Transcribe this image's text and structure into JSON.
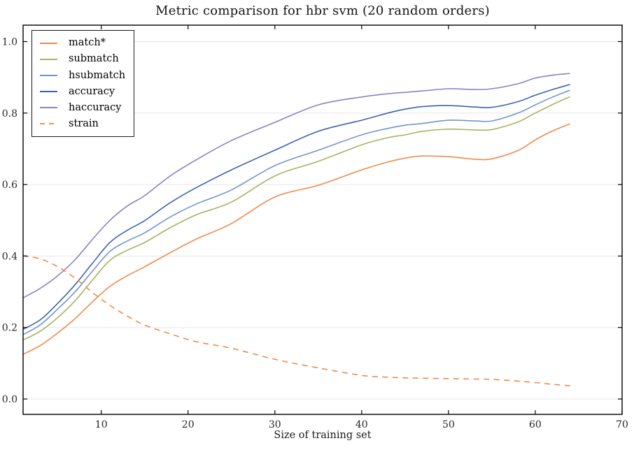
{
  "chart_data": {
    "type": "line",
    "title": "Metric comparison for hbr svm (20 random orders)",
    "xlabel": "Size of training set",
    "ylabel": "",
    "xlim": [
      1,
      70
    ],
    "ylim": [
      -0.043,
      1.046
    ],
    "x_ticks": [
      10,
      20,
      30,
      40,
      50,
      60,
      70
    ],
    "y_ticks": [
      0.0,
      0.2,
      0.4,
      0.6,
      0.8,
      1.0
    ],
    "grid": "horizontal",
    "legend_position": "upper left",
    "x": [
      1,
      3,
      5,
      7,
      9,
      11,
      13,
      15,
      18,
      21,
      25,
      30,
      35,
      40,
      43,
      45,
      47,
      50,
      53,
      55,
      58,
      60,
      62,
      64
    ],
    "series": [
      {
        "name": "match*",
        "color": "#EE8A4B",
        "style": "solid",
        "values": [
          0.125,
          0.15,
          0.185,
          0.225,
          0.272,
          0.315,
          0.345,
          0.37,
          0.41,
          0.448,
          0.491,
          0.565,
          0.598,
          0.641,
          0.663,
          0.674,
          0.68,
          0.678,
          0.671,
          0.672,
          0.695,
          0.725,
          0.75,
          0.77
        ]
      },
      {
        "name": "submatch",
        "color": "#A5B35F",
        "style": "solid",
        "values": [
          0.165,
          0.19,
          0.228,
          0.275,
          0.333,
          0.388,
          0.416,
          0.438,
          0.48,
          0.516,
          0.551,
          0.624,
          0.665,
          0.711,
          0.731,
          0.739,
          0.749,
          0.755,
          0.753,
          0.754,
          0.775,
          0.8,
          0.824,
          0.846
        ]
      },
      {
        "name": "hsubmatch",
        "color": "#7295CE",
        "style": "solid",
        "values": [
          0.18,
          0.208,
          0.252,
          0.3,
          0.358,
          0.413,
          0.442,
          0.465,
          0.51,
          0.546,
          0.585,
          0.653,
          0.696,
          0.739,
          0.757,
          0.766,
          0.771,
          0.78,
          0.778,
          0.778,
          0.8,
          0.823,
          0.845,
          0.864
        ]
      },
      {
        "name": "accuracy",
        "color": "#3D63AE",
        "style": "solid",
        "values": [
          0.195,
          0.222,
          0.268,
          0.32,
          0.38,
          0.438,
          0.472,
          0.499,
          0.55,
          0.592,
          0.641,
          0.696,
          0.749,
          0.78,
          0.8,
          0.811,
          0.818,
          0.821,
          0.817,
          0.816,
          0.832,
          0.85,
          0.866,
          0.88
        ]
      },
      {
        "name": "haccuracy",
        "color": "#8C81C4",
        "style": "solid",
        "values": [
          0.283,
          0.31,
          0.345,
          0.39,
          0.447,
          0.5,
          0.54,
          0.569,
          0.625,
          0.67,
          0.723,
          0.774,
          0.823,
          0.845,
          0.854,
          0.858,
          0.862,
          0.868,
          0.866,
          0.868,
          0.882,
          0.898,
          0.906,
          0.911
        ]
      },
      {
        "name": "strain",
        "color": "#EE8A4B",
        "style": "dashed",
        "values": [
          0.401,
          0.392,
          0.37,
          0.338,
          0.298,
          0.262,
          0.232,
          0.207,
          0.182,
          0.16,
          0.142,
          0.111,
          0.087,
          0.066,
          0.061,
          0.059,
          0.058,
          0.057,
          0.056,
          0.055,
          0.05,
          0.046,
          0.041,
          0.037
        ]
      }
    ]
  },
  "colors": {
    "grid": "#e7e7e7",
    "spine": "#000000",
    "tick": "#000000",
    "tick_label": "#262626"
  }
}
